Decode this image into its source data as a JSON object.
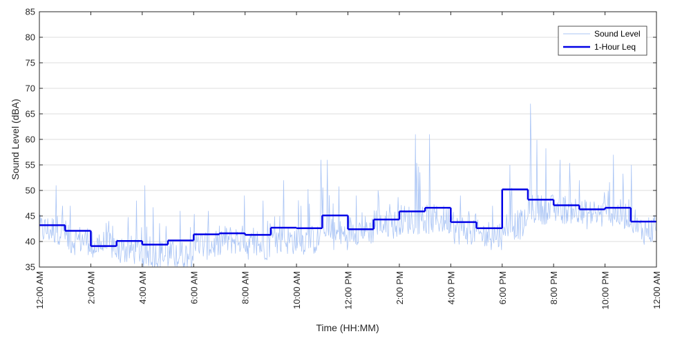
{
  "chart_data": {
    "type": "line",
    "xlabel": "Time (HH:MM)",
    "ylabel": "Sound Level (dBA)",
    "xlim": [
      "12:00 AM",
      "12:00 AM (+24h)"
    ],
    "x_tick_labels": [
      "12:00 AM",
      "2:00 AM",
      "4:00 AM",
      "6:00 AM",
      "8:00 AM",
      "10:00 AM",
      "12:00 PM",
      "2:00 PM",
      "4:00 PM",
      "6:00 PM",
      "8:00 PM",
      "10:00 PM",
      "12:00 AM"
    ],
    "ylim": [
      35,
      85
    ],
    "y_ticks": [
      35,
      40,
      45,
      50,
      55,
      60,
      65,
      70,
      75,
      80,
      85
    ],
    "grid": "horizontal",
    "legend_position": "top-right",
    "series": [
      {
        "name": "Sound Level",
        "color": "#a9c4f5",
        "style": "thin-line",
        "x": [
          "12:00 AM",
          "1:00 AM",
          "2:00 AM",
          "3:00 AM",
          "4:00 AM",
          "5:00 AM",
          "6:00 AM",
          "7:00 AM",
          "8:00 AM",
          "9:00 AM",
          "10:00 AM",
          "11:00 AM",
          "12:00 PM",
          "1:00 PM",
          "2:00 PM",
          "3:00 PM",
          "4:00 PM",
          "5:00 PM",
          "6:00 PM",
          "7:00 PM",
          "8:00 PM",
          "9:00 PM",
          "10:00 PM",
          "11:00 PM"
        ],
        "hourly_typical_level": [
          42,
          40,
          39,
          38,
          37,
          37,
          39,
          40,
          39,
          40,
          40,
          41,
          42,
          43,
          44,
          44,
          42,
          41,
          43,
          46,
          46,
          45,
          45,
          42
        ],
        "hourly_peak": [
          51,
          47,
          44,
          48,
          51,
          46,
          46,
          49,
          48,
          52,
          56,
          56,
          49,
          50,
          61,
          61,
          49,
          47,
          55,
          67,
          56,
          52,
          57,
          55
        ]
      },
      {
        "name": "1-Hour Leq",
        "color": "#0000e6",
        "style": "step",
        "x": [
          "12:00 AM",
          "1:00 AM",
          "2:00 AM",
          "3:00 AM",
          "4:00 AM",
          "5:00 AM",
          "6:00 AM",
          "7:00 AM",
          "8:00 AM",
          "9:00 AM",
          "10:00 AM",
          "11:00 AM",
          "12:00 PM",
          "1:00 PM",
          "2:00 PM",
          "3:00 PM",
          "4:00 PM",
          "5:00 PM",
          "6:00 PM",
          "7:00 PM",
          "8:00 PM",
          "9:00 PM",
          "10:00 PM",
          "11:00 PM"
        ],
        "values": [
          43.2,
          42.1,
          39.1,
          40.1,
          39.4,
          40.2,
          41.4,
          41.6,
          41.3,
          42.7,
          42.6,
          45.1,
          42.4,
          44.3,
          45.9,
          46.6,
          43.8,
          42.6,
          50.2,
          48.2,
          47.1,
          46.3,
          46.6,
          43.9
        ]
      }
    ]
  }
}
